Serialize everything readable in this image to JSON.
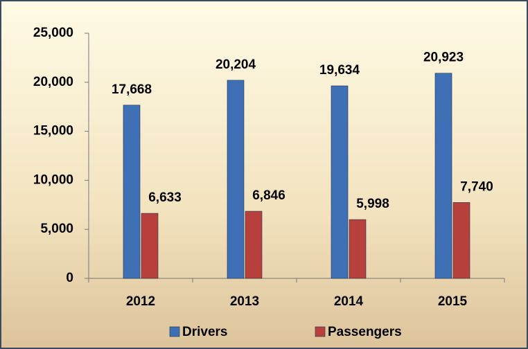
{
  "chart_data": {
    "type": "bar",
    "categories": [
      "2012",
      "2013",
      "2014",
      "2015"
    ],
    "series": [
      {
        "name": "Drivers",
        "color": "#3f6fb5",
        "values": [
          17668,
          20204,
          19634,
          20923
        ],
        "value_labels": [
          "17,668",
          "20,204",
          "19,634",
          "20,923"
        ]
      },
      {
        "name": "Passengers",
        "color": "#b8403c",
        "values": [
          6633,
          6846,
          5998,
          7740
        ],
        "value_labels": [
          "6,633",
          "6,846",
          "5,998",
          "7,740"
        ]
      }
    ],
    "ylim": [
      0,
      25000
    ],
    "yticks": [
      0,
      {
        "value": 5000,
        "label": "5,000"
      },
      {
        "value": 10000,
        "label": "10,000"
      },
      {
        "value": 15000,
        "label": "15,000"
      },
      {
        "value": 20000,
        "label": "20,000"
      },
      {
        "value": 25000,
        "label": "25,000"
      }
    ],
    "legend": "bottom"
  }
}
